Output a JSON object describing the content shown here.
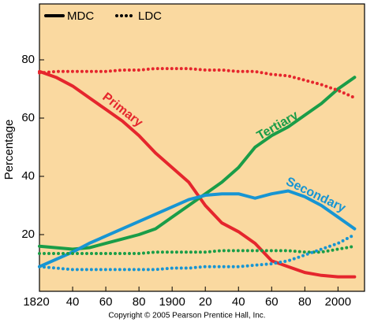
{
  "chart_data": {
    "type": "line",
    "ylabel": "Percentage",
    "footer": "Copyright © 2005 Pearson Prentice Hall, Inc.",
    "legend": [
      {
        "label": "MDC",
        "style": "solid"
      },
      {
        "label": "LDC",
        "style": "dotted"
      }
    ],
    "x": [
      1820,
      1830,
      1840,
      1850,
      1860,
      1870,
      1880,
      1890,
      1900,
      1910,
      1920,
      1930,
      1940,
      1950,
      1960,
      1970,
      1980,
      1990,
      2000,
      2010
    ],
    "xlim": [
      1820,
      2016
    ],
    "ylim": [
      0,
      100
    ],
    "xticks": [
      1820,
      {
        "value": 1840,
        "label": "40"
      },
      {
        "value": 1860,
        "label": "60"
      },
      {
        "value": 1880,
        "label": "80"
      },
      1900,
      {
        "value": 1920,
        "label": "20"
      },
      {
        "value": 1940,
        "label": "40"
      },
      {
        "value": 1960,
        "label": "60"
      },
      {
        "value": 1980,
        "label": "80"
      },
      2000
    ],
    "yticks": [
      20,
      40,
      60,
      80
    ],
    "series": [
      {
        "name": "Primary",
        "style": "solid",
        "color": "#e5262d",
        "values": [
          76,
          74,
          71,
          67,
          63,
          59,
          54,
          48,
          43,
          38,
          30,
          24,
          21,
          17,
          11,
          9,
          7,
          6,
          5.5,
          5.5
        ]
      },
      {
        "name": "Tertiary",
        "style": "solid",
        "color": "#1a9d48",
        "values": [
          16,
          15.5,
          15,
          15.5,
          17,
          18.5,
          20,
          22,
          26,
          30,
          34,
          38,
          43,
          50,
          54,
          57,
          61,
          65,
          70,
          74
        ]
      },
      {
        "name": "Secondary",
        "style": "solid",
        "color": "#1795d3",
        "values": [
          9,
          11.5,
          14,
          17,
          19.5,
          22,
          24.5,
          27,
          29.5,
          32,
          33.5,
          34,
          34,
          32.5,
          34,
          35,
          33,
          30,
          26,
          22
        ]
      },
      {
        "style": "dotted",
        "color": "#e5262d",
        "values": [
          75.5,
          76,
          76,
          76,
          76,
          76.5,
          76.5,
          77,
          77,
          77,
          76.5,
          76.5,
          76,
          76,
          75,
          74.5,
          73,
          71.5,
          69.5,
          67
        ]
      },
      {
        "style": "dotted",
        "color": "#1a9d48",
        "values": [
          13.5,
          13.5,
          13.5,
          13.5,
          13.5,
          13.5,
          13.5,
          14,
          14,
          14,
          14,
          14.5,
          14.5,
          14.5,
          14.5,
          14.5,
          14,
          14,
          15,
          16
        ]
      },
      {
        "style": "dotted",
        "color": "#1795d3",
        "values": [
          9,
          8.5,
          8,
          8,
          8,
          8,
          8,
          8,
          8.5,
          8.5,
          9,
          9,
          9,
          9.5,
          10,
          11,
          13,
          15,
          17,
          20
        ]
      }
    ]
  }
}
